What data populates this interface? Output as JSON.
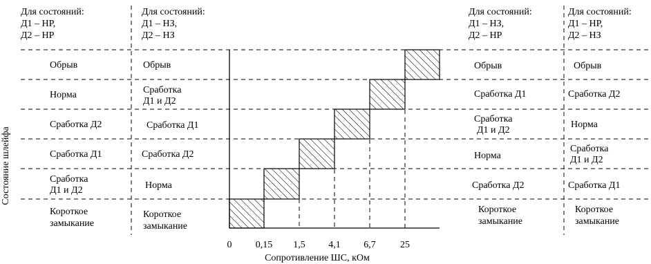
{
  "headers": [
    {
      "lines": [
        "Для состояний:",
        "Д1 – НР,",
        "Д2 – НР"
      ]
    },
    {
      "lines": [
        "Для состояний:",
        "Д1 – НЗ,",
        "Д2 – НЗ"
      ]
    },
    {
      "lines": [
        "Для состояний:",
        "Д1 – НЗ,",
        "Д2 – НР"
      ]
    },
    {
      "lines": [
        "Для состояний:",
        "Д1 – НР,",
        "Д2 – НЗ"
      ]
    }
  ],
  "columns": [
    [
      [
        "Обрыв"
      ],
      [
        "Норма"
      ],
      [
        "Сработка Д2"
      ],
      [
        "Сработка Д1"
      ],
      [
        "Сработка",
        "Д1 и Д2"
      ],
      [
        "Короткое",
        "замыкание"
      ]
    ],
    [
      [
        "Обрыв"
      ],
      [
        "Сработка",
        "Д1 и Д2"
      ],
      [
        "Сработка Д1"
      ],
      [
        "Сработка Д2"
      ],
      [
        "Норма"
      ],
      [
        "Короткое",
        "замыкание"
      ]
    ],
    [
      [
        "Обрыв"
      ],
      [
        "Сработка Д1"
      ],
      [
        "Сработка",
        "Д1 и Д2"
      ],
      [
        "Норма"
      ],
      [
        "Сработка Д2"
      ],
      [
        "Короткое",
        "замыкание"
      ]
    ],
    [
      [
        "Обрыв"
      ],
      [
        "Сработка Д2"
      ],
      [
        "Норма"
      ],
      [
        "Сработка",
        "Д1 и Д2"
      ],
      [
        "Сработка Д1"
      ],
      [
        "Короткое",
        "замыкание"
      ]
    ]
  ],
  "axis": {
    "y_title": "Состояние шлейфа",
    "x_title": "Сопротивление ШС, кОм",
    "ticks": [
      "0",
      "0,15",
      "1,5",
      "4,1",
      "6,7",
      "25"
    ]
  }
}
